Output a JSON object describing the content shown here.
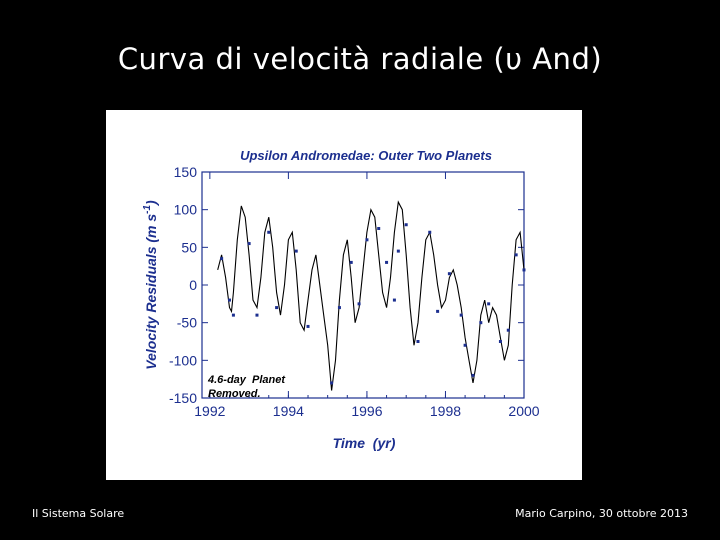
{
  "slide": {
    "title": "Curva di velocità radiale (υ And)",
    "footer_left": "Il Sistema Solare",
    "footer_right": "Mario Carpino, 30 ottobre 2013"
  },
  "colors": {
    "background": "#000000",
    "slide_text": "#ffffff",
    "panel": "#ffffff",
    "chart_ink": "#1c2f8f",
    "curve": "#000000"
  },
  "chart_data": {
    "type": "line",
    "title": "Upsilon Andromedae: Outer Two Planets",
    "xlabel": "Time  (yr)",
    "ylabel": "Velocity Residuals  (m s",
    "ylabel_sup": "-1",
    "ylabel_close": ")",
    "annotation": [
      "4.6-day  Planet",
      "Removed."
    ],
    "xlim": [
      1991.8,
      2000
    ],
    "ylim": [
      -150,
      150
    ],
    "xticks": [
      1992,
      1994,
      1996,
      1998,
      2000
    ],
    "xtick_labels": [
      "1992",
      "1994",
      "1996",
      "1998",
      "2000"
    ],
    "yticks": [
      150,
      100,
      50,
      0,
      -50,
      -100,
      -150
    ],
    "ytick_labels": [
      "150",
      "100",
      "50",
      "0",
      "-50",
      "-100",
      "-150"
    ],
    "grid": false,
    "series": [
      {
        "kind": "model-curve",
        "x": [
          1992.2,
          1992.3,
          1992.4,
          1992.5,
          1992.55,
          1992.6,
          1992.7,
          1992.8,
          1992.9,
          1993.0,
          1993.1,
          1993.2,
          1993.3,
          1993.4,
          1993.5,
          1993.6,
          1993.65,
          1993.7,
          1993.8,
          1993.9,
          1994.0,
          1994.1,
          1994.2,
          1994.3,
          1994.4,
          1994.5,
          1994.6,
          1994.7,
          1994.8,
          1994.9,
          1995.0,
          1995.1,
          1995.2,
          1995.3,
          1995.4,
          1995.5,
          1995.6,
          1995.7,
          1995.8,
          1995.9,
          1996.0,
          1996.1,
          1996.2,
          1996.3,
          1996.4,
          1996.5,
          1996.6,
          1996.7,
          1996.8,
          1996.9,
          1997.0,
          1997.1,
          1997.2,
          1997.3,
          1997.4,
          1997.5,
          1997.6,
          1997.7,
          1997.8,
          1997.9,
          1998.0,
          1998.1,
          1998.2,
          1998.3,
          1998.4,
          1998.5,
          1998.6,
          1998.7,
          1998.8,
          1998.9,
          1999.0,
          1999.1,
          1999.2,
          1999.3,
          1999.4,
          1999.5,
          1999.6,
          1999.7,
          1999.8,
          1999.9,
          2000.0
        ],
        "y": [
          20,
          40,
          10,
          -30,
          -35,
          -10,
          60,
          105,
          90,
          40,
          -20,
          -30,
          10,
          70,
          90,
          50,
          20,
          -10,
          -40,
          0,
          60,
          70,
          20,
          -50,
          -60,
          -20,
          20,
          40,
          0,
          -40,
          -80,
          -140,
          -100,
          -20,
          40,
          60,
          10,
          -50,
          -30,
          20,
          70,
          100,
          90,
          40,
          -10,
          -30,
          10,
          70,
          110,
          100,
          40,
          -30,
          -80,
          -50,
          10,
          60,
          70,
          40,
          0,
          -30,
          -20,
          10,
          20,
          0,
          -30,
          -70,
          -100,
          -130,
          -100,
          -40,
          -20,
          -50,
          -30,
          -40,
          -70,
          -100,
          -80,
          0,
          60,
          70,
          20
        ]
      },
      {
        "kind": "observations",
        "x": [
          1992.3,
          1992.5,
          1992.6,
          1993.0,
          1993.2,
          1993.5,
          1993.7,
          1994.2,
          1994.5,
          1995.1,
          1995.3,
          1995.6,
          1995.8,
          1996.0,
          1996.3,
          1996.5,
          1996.7,
          1996.8,
          1997.0,
          1997.3,
          1997.6,
          1997.8,
          1998.1,
          1998.4,
          1998.5,
          1998.7,
          1998.9,
          1999.1,
          1999.4,
          1999.6,
          1999.8,
          2000.0
        ],
        "y": [
          35,
          -20,
          -40,
          55,
          -40,
          70,
          -30,
          45,
          -55,
          -130,
          -30,
          30,
          -25,
          60,
          75,
          30,
          -20,
          45,
          80,
          -75,
          70,
          -35,
          15,
          -40,
          -80,
          -120,
          -50,
          -25,
          -75,
          -60,
          40,
          20
        ]
      }
    ]
  }
}
